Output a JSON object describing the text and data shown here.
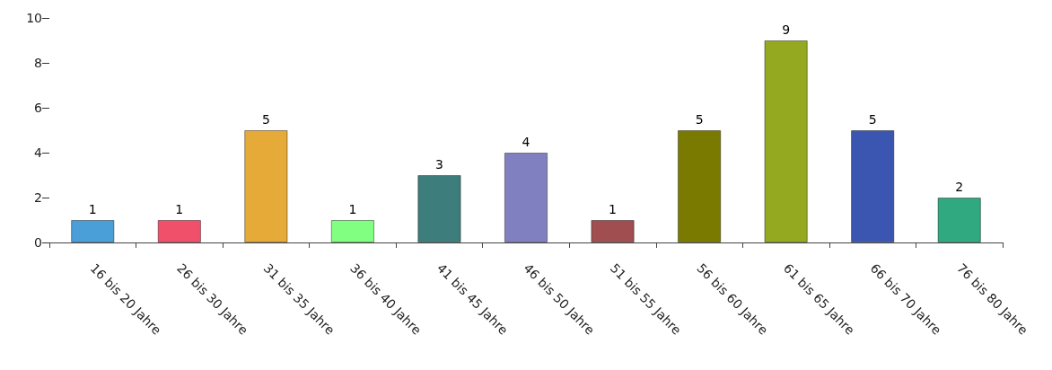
{
  "chart_data": {
    "type": "bar",
    "categories": [
      "16 bis 20 Jahre",
      "26 bis 30 Jahre",
      "31 bis 35 Jahre",
      "36 bis 40 Jahre",
      "41 bis 45 Jahre",
      "46 bis 50 Jahre",
      "51 bis 55 Jahre",
      "56 bis 60 Jahre",
      "61 bis 65 Jahre",
      "66 bis 70 Jahre",
      "76 bis 80 Jahre"
    ],
    "values": [
      1,
      1,
      5,
      1,
      3,
      4,
      1,
      5,
      9,
      5,
      2
    ],
    "colors": [
      "#4a9fd8",
      "#f0506a",
      "#e5aa38",
      "#80ff80",
      "#3d7d7b",
      "#8080c0",
      "#a04e50",
      "#7a7a00",
      "#94a820",
      "#3a56b0",
      "#30a880"
    ],
    "ylim": [
      0,
      10
    ],
    "yticks": [
      0,
      2,
      4,
      6,
      8,
      10
    ],
    "grid": false,
    "data_labels": true
  }
}
